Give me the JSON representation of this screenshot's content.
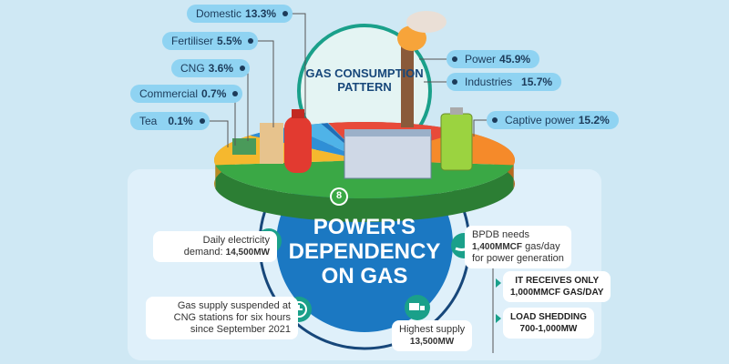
{
  "top_title": "GAS CONSUMPTION PATTERN",
  "main_title_lines": [
    "POWER'S",
    "DEPENDENCY",
    "ON GAS"
  ],
  "section_number": "8",
  "consumption": [
    {
      "label": "Domestic",
      "value": "13.3%",
      "pct": 13.3,
      "color": "#f5b82e"
    },
    {
      "label": "Fertiliser",
      "value": "5.5%",
      "pct": 5.5,
      "color": "#2f8fd6"
    },
    {
      "label": "CNG",
      "value": "3.6%",
      "pct": 3.6,
      "color": "#4fb3e8"
    },
    {
      "label": "Commercial",
      "value": "0.7%",
      "pct": 0.7,
      "color": "#1e6fb8"
    },
    {
      "label": "Tea",
      "value": "0.1%",
      "pct": 0.1,
      "color": "#7fcbea"
    },
    {
      "label": "Captive power",
      "value": "15.2%",
      "pct": 15.2,
      "color": "#e84a3a"
    },
    {
      "label": "Industries",
      "value": "15.7%",
      "pct": 15.7,
      "color": "#f58a2a"
    },
    {
      "label": "Power",
      "value": "45.9%",
      "pct": 45.9,
      "color": "#3aa845"
    }
  ],
  "facts": {
    "daily_demand": {
      "text": "Daily electricity",
      "text2": "demand:",
      "value": "14,500MW",
      "icon": "plug-icon"
    },
    "cng_suspension": {
      "lines": [
        "Gas supply suspended at",
        "CNG stations for six hours",
        "since September 2021"
      ],
      "icon": "clock-icon"
    },
    "highest_supply": {
      "text": "Highest supply",
      "value": "13,500MW",
      "icon": "truck-icon"
    },
    "bpdb_needs": {
      "line1": "BPDB needs",
      "value": "1,400MMCF",
      "line2": "gas/day",
      "line3": "for power generation",
      "icon": "hand-icon"
    },
    "receives": {
      "lines": [
        "IT RECEIVES ONLY",
        "1,000MMCF GAS/DAY"
      ]
    },
    "load_shedding": {
      "lines": [
        "LOAD SHEDDING",
        "700-1,000MW"
      ]
    }
  },
  "colors": {
    "teal": "#1aa08a",
    "blue": "#1b78c2",
    "navy": "#17477a",
    "background": "#cfe8f4"
  }
}
